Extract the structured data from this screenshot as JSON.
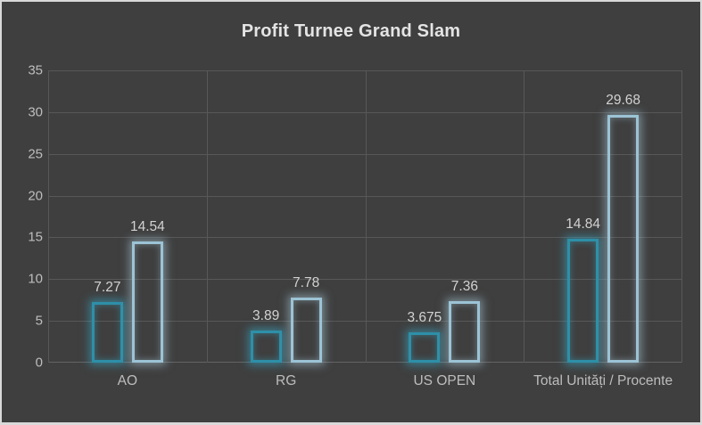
{
  "window": {
    "background_color": "#3F3F3F",
    "frame_border_color": "#D9D9D9"
  },
  "chart_data": {
    "type": "bar",
    "title": "Profit Turnee Grand Slam",
    "categories": [
      "AO",
      "RG",
      "US OPEN",
      "Total Unități / Procente"
    ],
    "series": [
      {
        "id": "series-1",
        "values": [
          7.27,
          3.89,
          3.675,
          14.84
        ],
        "data_labels": [
          "7.27",
          "3.89",
          "3.675",
          "14.84"
        ],
        "outline_color": "#2E8FA8",
        "glow_color": "#38AAC8",
        "fill": "none"
      },
      {
        "id": "series-2",
        "values": [
          14.54,
          7.78,
          7.36,
          29.68
        ],
        "data_labels": [
          "14.54",
          "7.78",
          "7.36",
          "29.68"
        ],
        "outline_color": "#9CC3D5",
        "glow_color": "#B0D3E4",
        "fill": "none"
      }
    ],
    "xlabel": "",
    "ylabel": "",
    "ylim": [
      0,
      35
    ],
    "yticks": [
      0,
      5,
      10,
      15,
      20,
      25,
      30,
      35
    ],
    "grid": "on",
    "gridline_color": "#585858",
    "legend": "none",
    "title_color": "#E4E4E4",
    "axis_text_color": "#BDBDBD",
    "data_label_color": "#D2D2D2",
    "bar_style": "hollow-outline-with-glow"
  }
}
